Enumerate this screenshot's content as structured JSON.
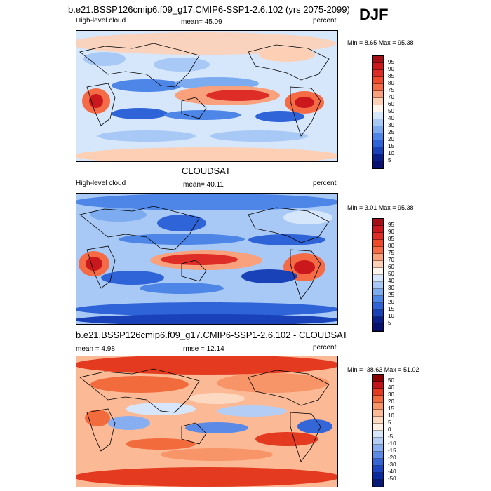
{
  "season": "DJF",
  "panels": [
    {
      "title": "b.e21.BSSP126cmip6.f09_g17.CMIP6-SSP1-2.6.102 (yrs 2075-2099)",
      "left": "High-level cloud",
      "center": "mean=  45.09",
      "right": "percent",
      "stats": "Min =   8.65 Max =  95.38",
      "colorbar": [
        "95",
        "90",
        "85",
        "80",
        "75",
        "70",
        "60",
        "50",
        "40",
        "30",
        "25",
        "20",
        "15",
        "10",
        "5"
      ],
      "colors": [
        "#a50f15",
        "#cb181d",
        "#de2d26",
        "#ef4a2a",
        "#f46b45",
        "#f9a07c",
        "#fdd0b6",
        "#fff5ec",
        "#d6e6fb",
        "#a8c8f5",
        "#7cabf0",
        "#4e86e8",
        "#2f63d8",
        "#1a42b8",
        "#0a1f8a",
        "#081070"
      ]
    },
    {
      "title": "CLOUDSAT",
      "left": "High-level cloud",
      "center": "mean=  40.11",
      "right": "percent",
      "stats": "Min =   3.01 Max =  95.38",
      "colorbar": [
        "95",
        "90",
        "85",
        "80",
        "75",
        "70",
        "60",
        "50",
        "40",
        "30",
        "25",
        "20",
        "15",
        "10",
        "5"
      ],
      "colors": [
        "#a50f15",
        "#cb181d",
        "#de2d26",
        "#ef4a2a",
        "#f46b45",
        "#f9a07c",
        "#fdd0b6",
        "#fff5ec",
        "#d6e6fb",
        "#a8c8f5",
        "#7cabf0",
        "#4e86e8",
        "#2f63d8",
        "#1a42b8",
        "#0a1f8a",
        "#081070"
      ]
    },
    {
      "title": "b.e21.BSSP126cmip6.f09_g17.CMIP6-SSP1-2.6.102 - CLOUDSAT",
      "left": "mean =   4.98",
      "center": "rmse =  12.14",
      "right": "percent",
      "stats": "Min = -38.63 Max =  51.02",
      "colorbar": [
        "50",
        "40",
        "30",
        "20",
        "15",
        "10",
        "5",
        "0",
        "-5",
        "-10",
        "-15",
        "-20",
        "-30",
        "-40",
        "-50"
      ],
      "colors": [
        "#8b0000",
        "#c4121a",
        "#e33a20",
        "#f26b3c",
        "#f79468",
        "#fbb995",
        "#fdd9c2",
        "#fff0e6",
        "#d8e6fb",
        "#b3cdf5",
        "#86aef0",
        "#5b8ae6",
        "#3566d8",
        "#1c45c2",
        "#0a2aa0",
        "#081a78"
      ]
    }
  ]
}
